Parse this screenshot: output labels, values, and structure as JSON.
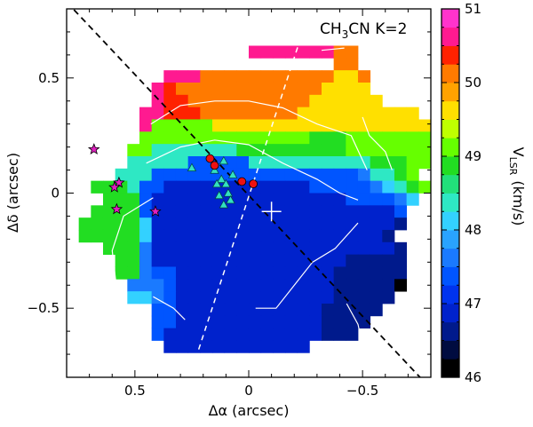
{
  "chart_data": {
    "type": "heatmap",
    "title": "CH3CN K=2",
    "title_main": "CH",
    "title_sub": "3",
    "title_rest": "CN K=2",
    "xlabel": "Δα (arcsec)",
    "ylabel": "Δδ (arcsec)",
    "colorbar_label": "V",
    "colorbar_label_sub": "LSR",
    "colorbar_label_unit": "(km/s)",
    "xlim": [
      0.8,
      -0.8
    ],
    "ylim": [
      -0.8,
      0.8
    ],
    "clim": [
      46,
      51
    ],
    "x_ticks": [
      0.5,
      0,
      -0.5
    ],
    "x_tick_labels": [
      "0.5",
      "0",
      "−0.5"
    ],
    "y_ticks": [
      0.5,
      0,
      -0.5
    ],
    "y_tick_labels": [
      "0.5",
      "0",
      "−0.5"
    ],
    "colorbar_ticks": [
      46,
      47,
      48,
      49,
      50,
      51
    ],
    "colorbar_tick_labels": [
      "46",
      "47",
      "48",
      "49",
      "50",
      "51"
    ],
    "colorbar_colors": [
      {
        "v": 46.0,
        "c": "#000000"
      },
      {
        "v": 46.25,
        "c": "#000c40"
      },
      {
        "v": 46.5,
        "c": "#001a8c"
      },
      {
        "v": 46.75,
        "c": "#0022cc"
      },
      {
        "v": 47.0,
        "c": "#0033ee"
      },
      {
        "v": 47.25,
        "c": "#0055ff"
      },
      {
        "v": 47.5,
        "c": "#1a7aff"
      },
      {
        "v": 47.75,
        "c": "#29a3ff"
      },
      {
        "v": 48.0,
        "c": "#33d1ff"
      },
      {
        "v": 48.25,
        "c": "#2ee8c4"
      },
      {
        "v": 48.5,
        "c": "#22e07a"
      },
      {
        "v": 48.75,
        "c": "#22dd22"
      },
      {
        "v": 49.0,
        "c": "#66ff00"
      },
      {
        "v": 49.25,
        "c": "#bfff00"
      },
      {
        "v": 49.5,
        "c": "#ffe000"
      },
      {
        "v": 49.75,
        "c": "#ffa200"
      },
      {
        "v": 50.0,
        "c": "#ff7a00"
      },
      {
        "v": 50.25,
        "c": "#ff2200"
      },
      {
        "v": 50.5,
        "c": "#ff1a90"
      },
      {
        "v": 50.75,
        "c": "#ff33cc"
      },
      {
        "v": 51.0,
        "c": "#ff99ff"
      }
    ],
    "grid": {
      "ra_start": 0.8,
      "dec_start": 0.8,
      "cell_size": 0.05333,
      "rows": [
        "------------------------------",
        "------------------------------",
        "------------------------------",
        "---------------LLLLLLLJJ------",
        "----------------------JJ------",
        "--------LLLJJJJJJJJJJJIIJ-----",
        "-------LKJJJJJJJJJJJJIIII-----",
        "-------LKKJJJJJJJJJJIIIIII----",
        "------LLKKKJJJJJJJJIIIIIIIIII-",
        "------LHHHHHIIIIIIIIIIIIIIIIII",
        "------HHHHHHHHHHHHHHGGGHHHHHHH",
        "-----HHFFFFFFFGGGGGGGGGHHHHHHH",
        "-----FFFFFCCCCCFFFFFFFFFFGGGHH",
        "----FFFCCCCCCCCCCCCCCCCCDFFGH-",
        "--GGGFCCBBBBBBBBBBBBCCCCCDEFGH",
        "---GGGCBBBBBBBBBBBBBBBBCCCCDE-",
        "--GGGGCBBBBBBBBBBBBBBBBBBBBC--",
        "-GGGGGEBBBBBBBBBBBBBBBBBBBBA--",
        "-GGGGGEBBBBBBBBBBBBBBBBBBBA---",
        "---GGGDBBBBBBBBBBBBBBBBBBBBA--",
        "----GGDBBBBBBBBBBBBBBBBAAAAA--",
        "----GGDCCBBBBBBBBBBBBBAAAAAA--",
        "-----DDDCBBBBBBBBBBBBBAAAAA0--",
        "-----EEDCBBBBBBBBBBBBBAAAAA---",
        "-------CCBBBBBBBBBBBBAAAAA----",
        "-------CCBBBBBBBBBBBBAAAA-----",
        "-------CBBBBBBBBBBBBBAAA------",
        "--------BBBBBBBBBBBB----------",
        "------------------------------",
        "------------------------------"
      ],
      "legend": {
        "0": 46.1,
        "A": 46.5,
        "B": 46.9,
        "C": 47.3,
        "D": 47.7,
        "E": 48.1,
        "F": 48.3,
        "G": 48.9,
        "H": 49.1,
        "I": 49.7,
        "J": 50.0,
        "K": 50.4,
        "L": 50.6
      }
    },
    "dashed_lines": [
      {
        "name": "black-dashed-diagonal",
        "color": "#000000",
        "points": [
          [
            0.8,
            0.83
          ],
          [
            -0.8,
            -0.85
          ]
        ]
      },
      {
        "name": "white-dashed-line",
        "color": "#ffffff",
        "points": [
          [
            0.26,
            -0.8
          ],
          [
            -0.28,
            0.83
          ]
        ]
      }
    ],
    "contours": [
      {
        "points": [
          [
            0.3,
            0.57
          ],
          [
            0.23,
            0.64
          ],
          [
            0.2,
            0.7
          ]
        ]
      },
      {
        "points": [
          [
            0.02,
            0.73
          ],
          [
            -0.08,
            0.74
          ]
        ]
      },
      {
        "points": [
          [
            -0.32,
            0.62
          ],
          [
            -0.42,
            0.63
          ]
        ]
      },
      {
        "points": [
          [
            -0.5,
            0.33
          ],
          [
            -0.53,
            0.25
          ],
          [
            -0.6,
            0.18
          ],
          [
            -0.63,
            0.1
          ]
        ]
      },
      {
        "points": [
          [
            0.43,
            0.3
          ],
          [
            0.3,
            0.38
          ],
          [
            0.15,
            0.4
          ],
          [
            0.0,
            0.4
          ],
          [
            -0.15,
            0.37
          ],
          [
            -0.3,
            0.3
          ],
          [
            -0.45,
            0.25
          ],
          [
            -0.52,
            0.1
          ]
        ]
      },
      {
        "points": [
          [
            0.45,
            0.13
          ],
          [
            0.3,
            0.2
          ],
          [
            0.15,
            0.23
          ],
          [
            0.0,
            0.21
          ],
          [
            -0.15,
            0.13
          ],
          [
            -0.3,
            0.06
          ],
          [
            -0.4,
            0.0
          ],
          [
            -0.48,
            -0.03
          ]
        ]
      },
      {
        "points": [
          [
            0.42,
            -0.02
          ],
          [
            0.55,
            -0.1
          ],
          [
            0.6,
            -0.25
          ],
          [
            0.58,
            -0.42
          ],
          [
            0.55,
            -0.48
          ]
        ]
      },
      {
        "points": [
          [
            0.42,
            -0.45
          ],
          [
            0.33,
            -0.5
          ],
          [
            0.28,
            -0.55
          ]
        ]
      },
      {
        "points": [
          [
            -0.03,
            -0.5
          ],
          [
            -0.12,
            -0.5
          ],
          [
            -0.2,
            -0.4
          ],
          [
            -0.28,
            -0.3
          ],
          [
            -0.38,
            -0.24
          ],
          [
            -0.48,
            -0.13
          ]
        ]
      },
      {
        "points": [
          [
            -0.43,
            -0.48
          ],
          [
            -0.48,
            -0.57
          ],
          [
            -0.5,
            -0.66
          ]
        ]
      },
      {
        "points": [
          [
            0.42,
            -0.72
          ],
          [
            0.37,
            -0.75
          ]
        ]
      }
    ],
    "stars": [
      [
        0.68,
        0.19
      ],
      [
        0.57,
        0.045
      ],
      [
        0.59,
        0.025
      ],
      [
        0.58,
        -0.07
      ],
      [
        0.41,
        -0.08
      ]
    ],
    "circles": [
      [
        0.17,
        0.15
      ],
      [
        0.03,
        0.05
      ],
      [
        -0.02,
        0.04
      ],
      [
        0.15,
        0.12
      ]
    ],
    "triangles": [
      [
        0.25,
        0.11
      ],
      [
        0.15,
        0.1
      ],
      [
        0.11,
        0.14
      ],
      [
        0.07,
        0.08
      ],
      [
        0.12,
        0.06
      ],
      [
        0.1,
        0.04
      ],
      [
        0.14,
        0.04
      ],
      [
        0.09,
        0.0
      ],
      [
        0.13,
        -0.01
      ],
      [
        0.11,
        -0.05
      ],
      [
        0.08,
        -0.03
      ]
    ],
    "cross": [
      -0.1,
      -0.08
    ]
  }
}
